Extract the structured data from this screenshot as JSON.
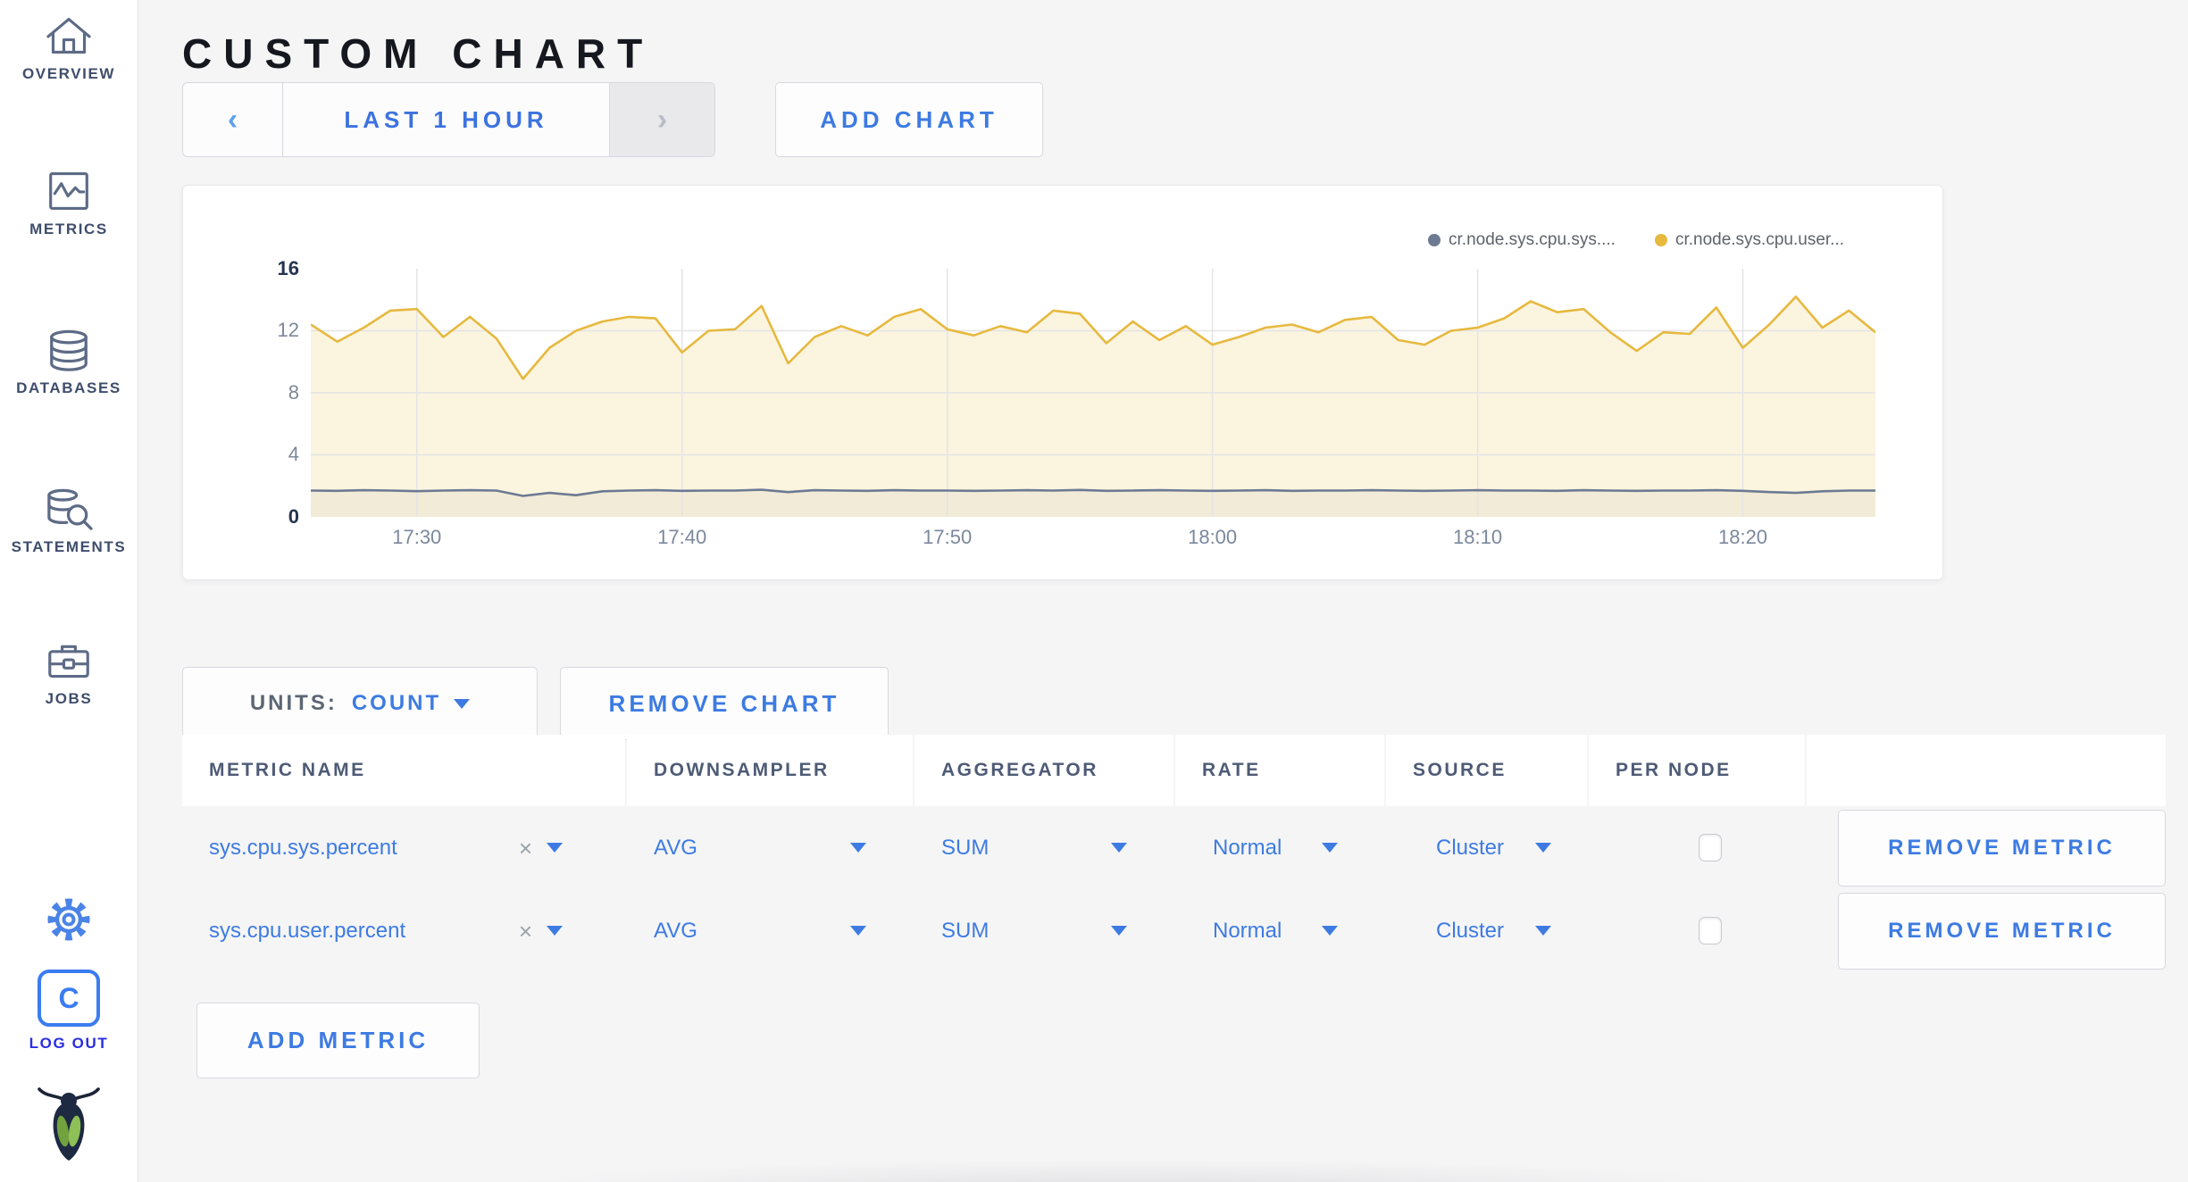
{
  "page": {
    "title": "CUSTOM CHART"
  },
  "sidebar": {
    "items": [
      {
        "label": "OVERVIEW"
      },
      {
        "label": "METRICS"
      },
      {
        "label": "DATABASES"
      },
      {
        "label": "STATEMENTS"
      },
      {
        "label": "JOBS"
      }
    ],
    "logout_label": "LOG OUT",
    "logo_letter": "C"
  },
  "toolbar": {
    "prev_arrow": "‹",
    "time_range_label": "LAST 1 HOUR",
    "next_arrow": "›",
    "add_chart_label": "ADD CHART"
  },
  "chart_card": {
    "legend": [
      {
        "label": "cr.node.sys.cpu.sys....",
        "color": "#6c7a93"
      },
      {
        "label": "cr.node.sys.cpu.user...",
        "color": "#e6b93f"
      }
    ]
  },
  "chart_data": {
    "type": "line",
    "title": "",
    "xlabel": "",
    "ylabel": "",
    "ylim": [
      0,
      16
    ],
    "y_ticks": [
      16,
      12,
      8,
      4,
      0
    ],
    "x_ticks": [
      "17:30",
      "17:40",
      "17:50",
      "18:00",
      "18:10",
      "18:20"
    ],
    "x_tick_minutes": [
      4,
      14,
      24,
      34,
      44,
      54
    ],
    "x_span_minutes": 59,
    "grid": true,
    "legend_position": "top-right",
    "series": [
      {
        "name": "cr.node.sys.cpu.sys....",
        "color": "#6c7a93",
        "fill": "rgba(108,118,135,0.10)",
        "values": [
          1.7,
          1.68,
          1.72,
          1.7,
          1.66,
          1.7,
          1.72,
          1.7,
          1.35,
          1.55,
          1.4,
          1.65,
          1.7,
          1.72,
          1.68,
          1.7,
          1.7,
          1.75,
          1.6,
          1.72,
          1.7,
          1.68,
          1.72,
          1.7,
          1.7,
          1.68,
          1.7,
          1.72,
          1.7,
          1.74,
          1.68,
          1.7,
          1.72,
          1.7,
          1.68,
          1.7,
          1.72,
          1.68,
          1.7,
          1.7,
          1.72,
          1.7,
          1.68,
          1.7,
          1.72,
          1.7,
          1.7,
          1.68,
          1.72,
          1.7,
          1.68,
          1.7,
          1.7,
          1.72,
          1.68,
          1.6,
          1.55,
          1.65,
          1.7,
          1.7
        ]
      },
      {
        "name": "cr.node.sys.cpu.user...",
        "color": "#e6b93f",
        "fill": "rgba(244,228,175,0.40)",
        "values": [
          12.4,
          11.3,
          12.2,
          13.3,
          13.4,
          11.6,
          12.9,
          11.5,
          8.9,
          10.9,
          12.0,
          12.6,
          12.9,
          12.8,
          10.6,
          12.0,
          12.1,
          13.6,
          9.9,
          11.6,
          12.3,
          11.7,
          12.9,
          13.4,
          12.1,
          11.7,
          12.3,
          11.9,
          13.3,
          13.1,
          11.2,
          12.6,
          11.4,
          12.3,
          11.1,
          11.6,
          12.2,
          12.4,
          11.9,
          12.7,
          12.9,
          11.4,
          11.1,
          12.0,
          12.2,
          12.8,
          13.9,
          13.2,
          13.4,
          11.9,
          10.7,
          11.9,
          11.8,
          13.5,
          10.9,
          12.4,
          14.2,
          12.2,
          13.3,
          11.9
        ]
      }
    ]
  },
  "units_bar": {
    "units_label": "UNITS:",
    "units_value": "COUNT",
    "remove_chart_label": "REMOVE CHART"
  },
  "metrics_table": {
    "headers": [
      "METRIC NAME",
      "DOWNSAMPLER",
      "AGGREGATOR",
      "RATE",
      "SOURCE",
      "PER NODE",
      ""
    ],
    "close_glyph": "×",
    "rows": [
      {
        "metric": "sys.cpu.sys.percent",
        "downsampler": "AVG",
        "aggregator": "SUM",
        "rate": "Normal",
        "source": "Cluster",
        "per_node_checked": false,
        "remove_label": "REMOVE METRIC"
      },
      {
        "metric": "sys.cpu.user.percent",
        "downsampler": "AVG",
        "aggregator": "SUM",
        "rate": "Normal",
        "source": "Cluster",
        "per_node_checked": false,
        "remove_label": "REMOVE METRIC"
      }
    ],
    "add_metric_label": "ADD METRIC"
  },
  "colors": {
    "accent_blue": "#3d7be2",
    "logout_blue": "#2a2ee2",
    "series_yellow": "#e6b93f",
    "series_gray_blue": "#6c7a93",
    "page_background": "#f5f5f6"
  }
}
